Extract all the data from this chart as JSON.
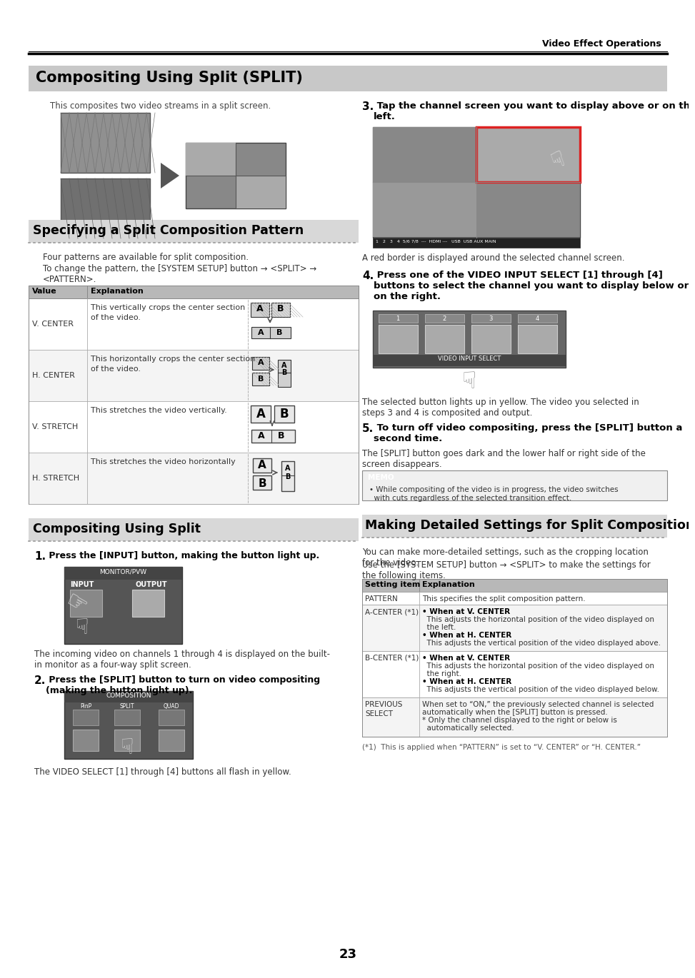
{
  "page_title": "Video Effect Operations",
  "main_title": "Compositing Using Split (SPLIT)",
  "main_desc": "This composites two video streams in a split screen.",
  "section1_title": "Specifying a Split Composition Pattern",
  "section1_desc1": "Four patterns are available for split composition.",
  "section1_desc2": "To change the pattern, the [SYSTEM SETUP] button → <SPLIT> →\n<PATTERN>.",
  "table_headers": [
    "Value",
    "Explanation"
  ],
  "table_rows": [
    [
      "V. CENTER",
      "This vertically crops the center section\nof the video."
    ],
    [
      "H. CENTER",
      "This horizontally crops the center section\nof the video."
    ],
    [
      "V. STRETCH",
      "This stretches the video vertically."
    ],
    [
      "H. STRETCH",
      "This stretches the video horizontally"
    ]
  ],
  "section2_title": "Compositing Using Split",
  "step1_bold": "1.",
  "step1_text": " Press the [INPUT] button, making the button light up.",
  "step1_desc": "The incoming video on channels 1 through 4 is displayed on the built-\nin monitor as a four-way split screen.",
  "step2_bold": "2.",
  "step2_text": " Press the [SPLIT] button to turn on video compositing\n(making the button light up).",
  "step2_desc": "The VIDEO SELECT [1] through [4] buttons all flash in yellow.",
  "r_step3_bold": "3.",
  "r_step3_text": " Tap the channel screen you want to display above or on the\nleft.",
  "r_step3_desc": "A red border is displayed around the selected channel screen.",
  "r_step4_bold": "4.",
  "r_step4_text": " Press one of the VIDEO INPUT SELECT [1] through [4]\nbuttons to select the channel you want to display below or\non the right.",
  "r_step4_desc": "The selected button lights up in yellow. The video you selected in\nsteps 3 and 4 is composited and output.",
  "r_step5_bold": "5.",
  "r_step5_text": " To turn off video compositing, press the [SPLIT] button a\nsecond time.",
  "r_step5_desc": "The [SPLIT] button goes dark and the lower half or right side of the\nscreen disappears.",
  "memo_title": "MEMO",
  "memo_text": "• While compositing of the video is in progress, the video switches\n  with cuts regardless of the selected transition effect.",
  "right_section_title": "Making Detailed Settings for Split Composition",
  "right_section_desc1": "You can make more-detailed settings, such as the cropping location\nfor the video.",
  "right_section_desc2": "Use the [SYSTEM SETUP] button → <SPLIT> to make the settings for\nthe following items.",
  "detail_table_headers": [
    "Setting item",
    "Explanation"
  ],
  "detail_table_rows": [
    [
      "PATTERN",
      "This specifies the split composition pattern."
    ],
    [
      "A-CENTER (*1)",
      "• When at V. CENTER\n  This adjusts the horizontal position of the video displayed on\n  the left.\n• When at H. CENTER\n  This adjusts the vertical position of the video displayed above."
    ],
    [
      "B-CENTER (*1)",
      "• When at V. CENTER\n  This adjusts the horizontal position of the video displayed on\n  the right.\n• When at H. CENTER\n  This adjusts the vertical position of the video displayed below."
    ],
    [
      "PREVIOUS\nSELECT",
      "When set to “ON,” the previously selected channel is selected\nautomatically when the [SPLIT] button is pressed.\n* Only the channel displayed to the right or below is\n  automatically selected."
    ]
  ],
  "footnote": "(*1)  This is applied when “PATTERN” is set to “V. CENTER” or “H. CENTER.”",
  "page_number": "23"
}
